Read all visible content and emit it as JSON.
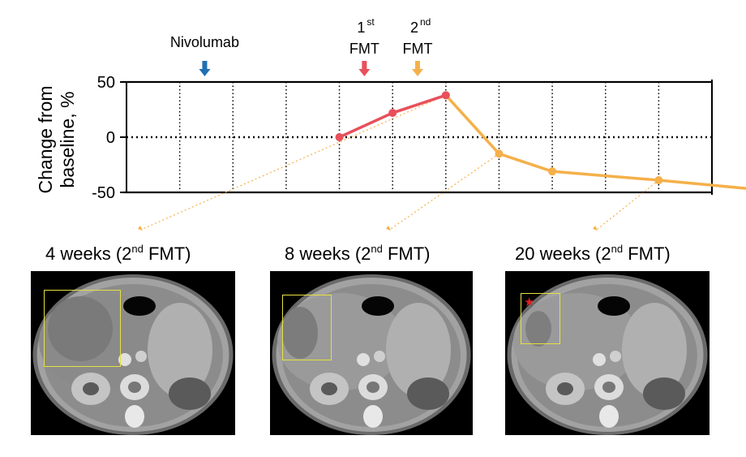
{
  "chart_data": {
    "type": "line",
    "ylabel_line1": "Change from",
    "ylabel_line2": "baseline, %",
    "ylim": [
      -50,
      50
    ],
    "yticks": [
      "50",
      "0",
      "-50"
    ],
    "ytick_values": [
      50,
      0,
      -50
    ],
    "x_slots": 11,
    "grid": "vertical dotted lines",
    "zero_line": "dotted",
    "series": [
      {
        "color": "#e8505b",
        "points": [
          [
            4,
            0
          ],
          [
            5,
            22
          ],
          [
            6,
            38
          ]
        ]
      },
      {
        "color": "#f5b04a",
        "points": [
          [
            6,
            38
          ],
          [
            7,
            -15
          ],
          [
            8,
            -31
          ],
          [
            10,
            -39
          ],
          [
            12,
            -48
          ]
        ]
      }
    ],
    "events": [
      {
        "label_lines": [
          "Nivolumab"
        ],
        "sup": "",
        "x": 1,
        "color": "#2070b4"
      },
      {
        "label_lines": [
          "1",
          "FMT"
        ],
        "sup": "st",
        "x": 4,
        "color": "#e8505b"
      },
      {
        "label_lines": [
          "2",
          "FMT"
        ],
        "sup": "nd",
        "x": 5,
        "color": "#f5b04a"
      }
    ],
    "scan_links": [
      6,
      7,
      10
    ]
  },
  "panels": [
    {
      "title_pre": "4 weeks (2",
      "title_sup": "nd",
      "title_post": " FMT)",
      "has_star": false
    },
    {
      "title_pre": "8 weeks (2",
      "title_sup": "nd",
      "title_post": " FMT)",
      "has_star": false
    },
    {
      "title_pre": "20 weeks (2",
      "title_sup": "nd",
      "title_post": " FMT)",
      "has_star": true
    }
  ],
  "colors": {
    "first_fmt": "#e8505b",
    "second_fmt": "#f5b04a",
    "nivolumab": "#2070b4",
    "roi_box": "#e6e040",
    "star": "#e02020"
  }
}
